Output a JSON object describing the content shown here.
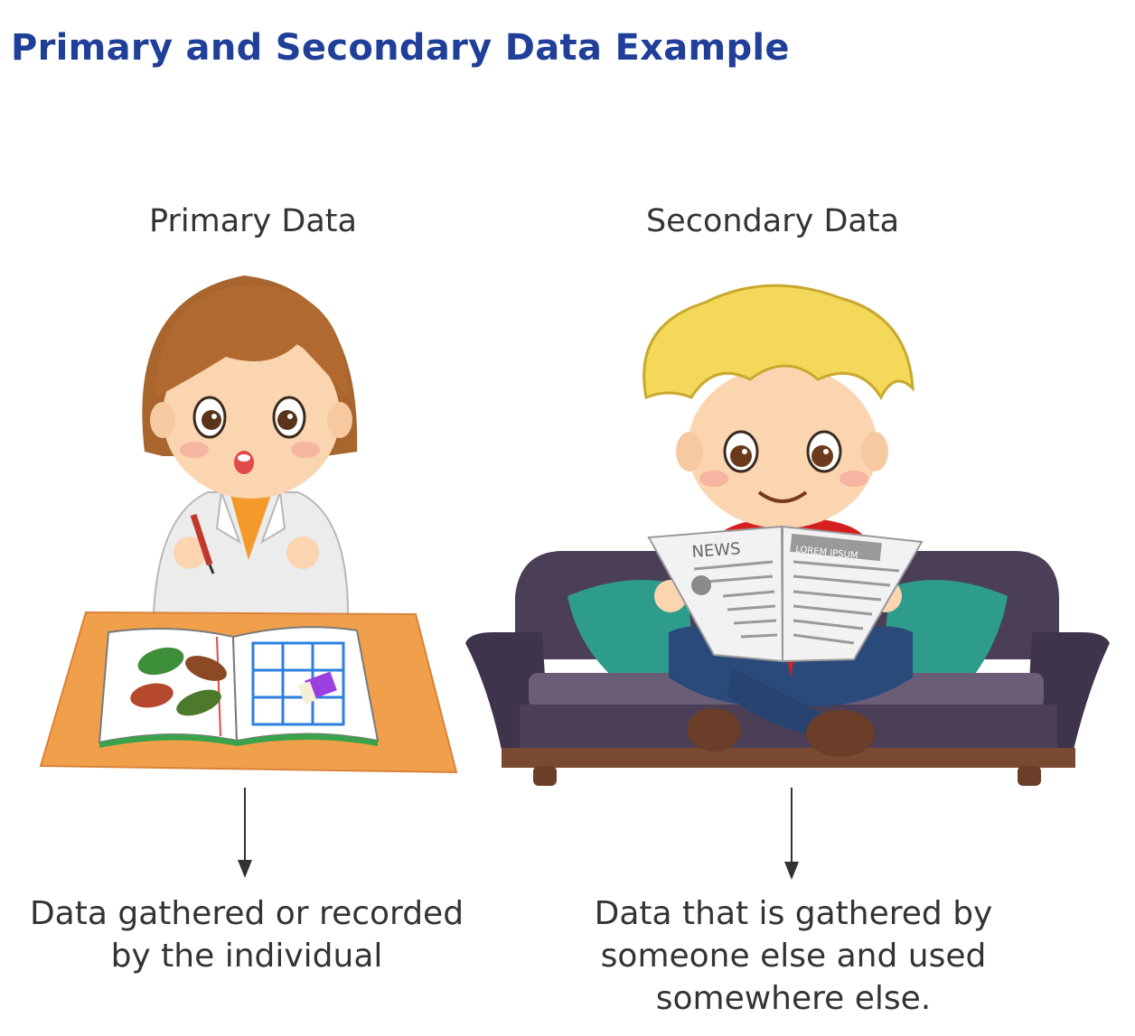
{
  "title": "Primary and Secondary Data Example",
  "primary": {
    "label": "Primary Data",
    "description_line1": "Data gathered or recorded",
    "description_line2": "by the individual"
  },
  "secondary": {
    "label": "Secondary Data",
    "description_line1": "Data that is gathered by",
    "description_line2": "someone else and used",
    "description_line3": "somewhere else.",
    "newspaper_masthead": "NEWS",
    "newspaper_heading": "LOREM IPSUM"
  },
  "colors": {
    "title": "#1f3f99",
    "text": "#333333",
    "desk": "#f0a04b",
    "sofa": "#4a3f57",
    "cushion": "#2e9c8c"
  }
}
